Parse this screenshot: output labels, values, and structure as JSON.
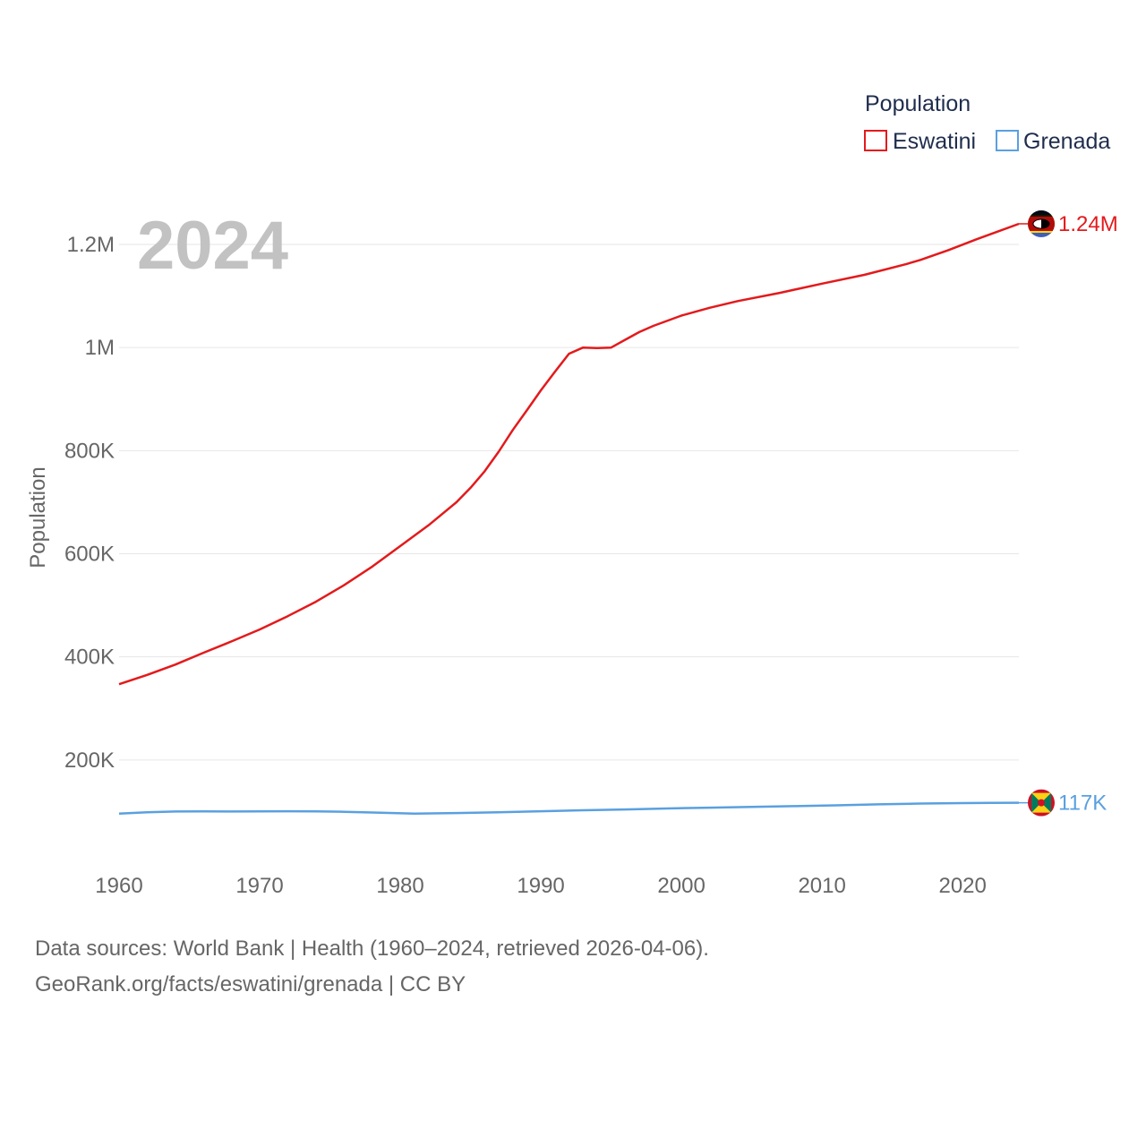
{
  "chart_data": {
    "type": "line",
    "year_label": "2024",
    "ylabel": "Population",
    "xlabel": "",
    "xlim": [
      1960,
      2024
    ],
    "ylim": [
      0,
      1300000
    ],
    "x_ticks": [
      1960,
      1970,
      1980,
      1990,
      2000,
      2010,
      2020
    ],
    "x_tick_labels": [
      "1960",
      "1970",
      "1980",
      "1990",
      "2000",
      "2010",
      "2020"
    ],
    "y_ticks": [
      200000,
      400000,
      600000,
      800000,
      1000000,
      1200000
    ],
    "y_tick_labels": [
      "200K",
      "400K",
      "600K",
      "800K",
      "1M",
      "1.2M"
    ],
    "grid": true,
    "legend": {
      "title": "Population",
      "position": "top-right",
      "entries": [
        "Eswatini",
        "Grenada"
      ]
    },
    "series": [
      {
        "name": "Eswatini",
        "color": "#e31a1c",
        "end_label": "1.24M",
        "flag_icon": "eswatini-flag-icon",
        "x": [
          1960,
          1962,
          1964,
          1966,
          1968,
          1970,
          1972,
          1974,
          1976,
          1978,
          1980,
          1982,
          1984,
          1985,
          1986,
          1987,
          1988,
          1989,
          1990,
          1991,
          1992,
          1993,
          1994,
          1995,
          1996,
          1997,
          1998,
          2000,
          2002,
          2004,
          2007,
          2010,
          2013,
          2016,
          2017,
          2019,
          2021,
          2024
        ],
        "values": [
          347000,
          365000,
          385000,
          408000,
          430000,
          453000,
          479000,
          507000,
          539000,
          575000,
          615000,
          655000,
          700000,
          728000,
          760000,
          798000,
          840000,
          878000,
          917000,
          953000,
          988000,
          1000000,
          999000,
          1000000,
          1015000,
          1030000,
          1042000,
          1062000,
          1077000,
          1090000,
          1106000,
          1124000,
          1141000,
          1162000,
          1170000,
          1189000,
          1210000,
          1240000
        ]
      },
      {
        "name": "Grenada",
        "color": "#5aa0e0",
        "end_label": "117K",
        "flag_icon": "grenada-flag-icon",
        "x": [
          1960,
          1962,
          1964,
          1966,
          1968,
          1970,
          1972,
          1974,
          1976,
          1978,
          1981,
          1984,
          1987,
          1990,
          1993,
          1996,
          1999,
          2002,
          2005,
          2008,
          2011,
          2014,
          2017,
          2020,
          2022,
          2024
        ],
        "values": [
          96000,
          98500,
          100000,
          100200,
          100000,
          100300,
          100500,
          100300,
          99500,
          98200,
          96000,
          97000,
          98500,
          100500,
          102500,
          104000,
          106000,
          107500,
          109000,
          110500,
          112000,
          114000,
          115500,
          116300,
          116800,
          117000
        ]
      }
    ]
  },
  "footer": {
    "line1": "Data sources: World Bank | Health (1960–2024, retrieved 2026-04-06).",
    "line2": "GeoRank.org/facts/eswatini/grenada | CC BY"
  }
}
